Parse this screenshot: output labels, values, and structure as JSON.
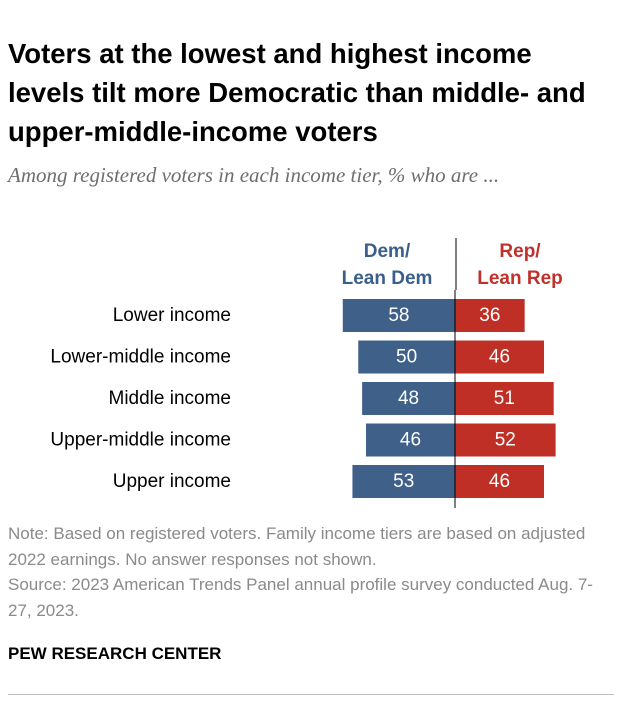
{
  "title": "Voters at the lowest and highest income levels tilt more Democratic than middle- and upper-middle-income voters",
  "subtitle": "Among registered voters in each income tier, % who are ...",
  "notes": {
    "note": "Note: Based on registered voters. Family income tiers are based on adjusted 2022 earnings. No answer responses not shown.",
    "source": "Source: 2023 American Trends Panel annual profile survey conducted Aug. 7-27, 2023."
  },
  "brand": "PEW RESEARCH CENTER",
  "colors": {
    "dem": "#3e6089",
    "rep": "#bf2f26",
    "dem_text": "#3a5f8a",
    "rep_text": "#c0312b",
    "divider": "#000000"
  },
  "chart_data": {
    "type": "bar",
    "orientation": "horizontal-diverging",
    "categories": [
      "Lower income",
      "Lower-middle income",
      "Middle income",
      "Upper-middle income",
      "Upper income"
    ],
    "series": [
      {
        "name": "Dem/ Lean Dem",
        "name_lines": [
          "Dem/",
          "Lean Dem"
        ],
        "values": [
          58,
          50,
          48,
          46,
          53
        ]
      },
      {
        "name": "Rep/ Lean Rep",
        "name_lines": [
          "Rep/",
          "Lean Rep"
        ],
        "values": [
          36,
          46,
          51,
          52,
          46
        ]
      }
    ]
  }
}
